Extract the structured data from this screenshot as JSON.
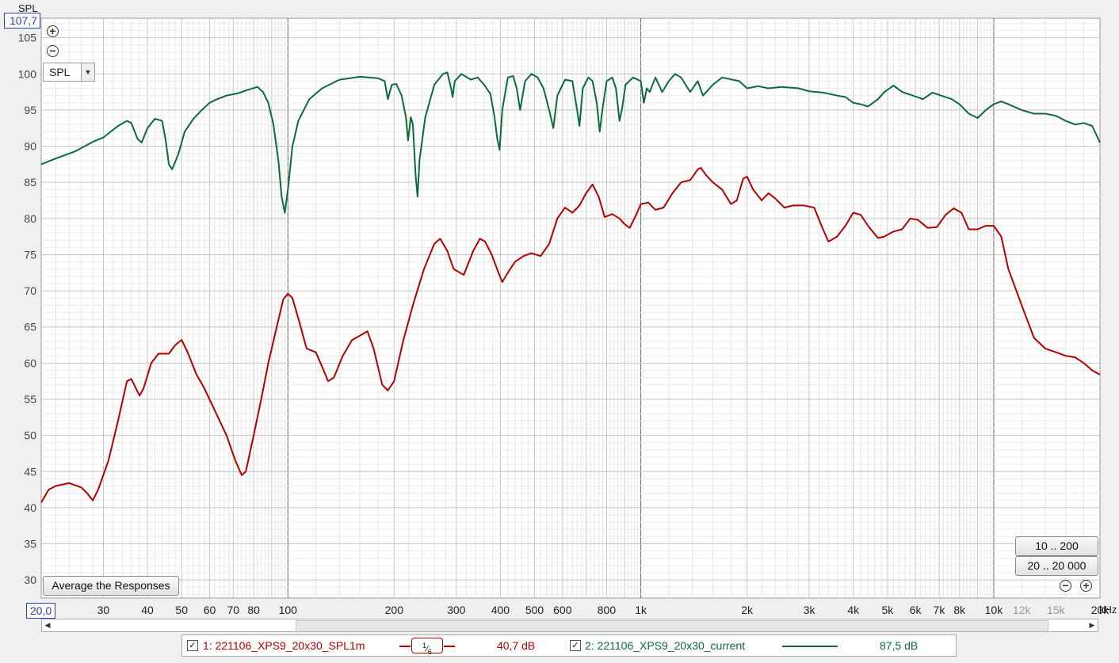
{
  "axes": {
    "y_unit": "SPL",
    "y_max_value": "107,7",
    "x_min_value": "20,0",
    "x_unit": "kHz",
    "y_ticks": [
      30,
      35,
      40,
      45,
      50,
      55,
      60,
      65,
      70,
      75,
      80,
      85,
      90,
      95,
      100,
      105
    ],
    "x_ticks": [
      {
        "f": 30,
        "label": "30"
      },
      {
        "f": 40,
        "label": "40"
      },
      {
        "f": 50,
        "label": "50"
      },
      {
        "f": 60,
        "label": "60"
      },
      {
        "f": 70,
        "label": "70"
      },
      {
        "f": 80,
        "label": "80"
      },
      {
        "f": 100,
        "label": "100"
      },
      {
        "f": 200,
        "label": "200"
      },
      {
        "f": 300,
        "label": "300"
      },
      {
        "f": 400,
        "label": "400"
      },
      {
        "f": 500,
        "label": "500"
      },
      {
        "f": 600,
        "label": "600"
      },
      {
        "f": 800,
        "label": "800"
      },
      {
        "f": 1000,
        "label": "1k"
      },
      {
        "f": 2000,
        "label": "2k"
      },
      {
        "f": 3000,
        "label": "3k"
      },
      {
        "f": 4000,
        "label": "4k"
      },
      {
        "f": 5000,
        "label": "5k"
      },
      {
        "f": 6000,
        "label": "6k"
      },
      {
        "f": 7000,
        "label": "7k"
      },
      {
        "f": 8000,
        "label": "8k"
      },
      {
        "f": 10000,
        "label": "10k"
      },
      {
        "f": 12000,
        "label": "12k",
        "dim": true
      },
      {
        "f": 15000,
        "label": "15k",
        "dim": true
      },
      {
        "f": 20000,
        "label": "20k"
      }
    ]
  },
  "controls": {
    "spl_select": "SPL",
    "average_button": "Average the Responses",
    "range_button_1": "10 .. 200",
    "range_button_2": "20 .. 20 000"
  },
  "legend": {
    "item1_label": "1: 221106_XPS9_20x30_SPL1m",
    "item1_value": "40,7 dB",
    "smoothing_num": "1",
    "smoothing_den": "6",
    "item2_label": "2: 221106_XPS9_20x30_current",
    "item2_value": "87,5 dB"
  },
  "colors": {
    "series1": "#b30000",
    "series2": "#0b6b3a",
    "grid": "#d6d6d6",
    "major_grid": "#666666"
  },
  "chart_data": {
    "type": "line",
    "x_scale": "log",
    "xlim": [
      20,
      20000
    ],
    "ylim": [
      27.5,
      107.7
    ],
    "grid": true,
    "series": [
      {
        "name": "1: 221106_XPS9_20x30_SPL1m",
        "color": "#b30000",
        "points": [
          [
            20,
            40.7
          ],
          [
            21,
            42.5
          ],
          [
            22,
            43.0
          ],
          [
            24,
            43.4
          ],
          [
            26,
            42.8
          ],
          [
            27,
            42.0
          ],
          [
            28,
            41.0
          ],
          [
            29,
            42.5
          ],
          [
            31,
            46.5
          ],
          [
            33,
            52
          ],
          [
            35,
            57.5
          ],
          [
            36,
            57.8
          ],
          [
            38,
            55.5
          ],
          [
            39,
            56.5
          ],
          [
            41,
            60
          ],
          [
            43,
            61.3
          ],
          [
            46,
            61.3
          ],
          [
            48,
            62.5
          ],
          [
            50,
            63.2
          ],
          [
            52,
            61.5
          ],
          [
            55,
            58.5
          ],
          [
            58,
            56.5
          ],
          [
            62,
            53.5
          ],
          [
            67,
            50
          ],
          [
            71,
            46.5
          ],
          [
            74,
            44.5
          ],
          [
            76,
            45
          ],
          [
            80,
            50
          ],
          [
            84,
            55
          ],
          [
            88,
            60
          ],
          [
            93,
            65
          ],
          [
            97,
            68.8
          ],
          [
            100,
            69.6
          ],
          [
            103,
            69
          ],
          [
            108,
            65.5
          ],
          [
            113,
            62
          ],
          [
            120,
            61.5
          ],
          [
            125,
            59.5
          ],
          [
            130,
            57.5
          ],
          [
            135,
            58
          ],
          [
            143,
            61
          ],
          [
            152,
            63.2
          ],
          [
            160,
            63.8
          ],
          [
            168,
            64.4
          ],
          [
            175,
            62
          ],
          [
            185,
            57
          ],
          [
            192,
            56.2
          ],
          [
            200,
            57.5
          ],
          [
            212,
            63
          ],
          [
            226,
            68
          ],
          [
            243,
            73
          ],
          [
            260,
            76.5
          ],
          [
            270,
            77.2
          ],
          [
            283,
            75.5
          ],
          [
            295,
            73
          ],
          [
            315,
            72.2
          ],
          [
            335,
            75.5
          ],
          [
            350,
            77.2
          ],
          [
            362,
            76.8
          ],
          [
            378,
            75
          ],
          [
            395,
            72.5
          ],
          [
            405,
            71.2
          ],
          [
            420,
            72.5
          ],
          [
            440,
            74
          ],
          [
            465,
            74.8
          ],
          [
            490,
            75.2
          ],
          [
            520,
            74.8
          ],
          [
            550,
            76.5
          ],
          [
            580,
            80
          ],
          [
            610,
            81.5
          ],
          [
            640,
            80.8
          ],
          [
            670,
            81.8
          ],
          [
            700,
            83.5
          ],
          [
            730,
            84.7
          ],
          [
            760,
            83
          ],
          [
            790,
            80.2
          ],
          [
            830,
            80.6
          ],
          [
            870,
            80
          ],
          [
            900,
            79.2
          ],
          [
            930,
            78.7
          ],
          [
            970,
            80.5
          ],
          [
            1000,
            82
          ],
          [
            1050,
            82.2
          ],
          [
            1100,
            81.2
          ],
          [
            1160,
            81.5
          ],
          [
            1230,
            83.5
          ],
          [
            1300,
            85
          ],
          [
            1380,
            85.3
          ],
          [
            1450,
            86.8
          ],
          [
            1480,
            87
          ],
          [
            1530,
            86
          ],
          [
            1600,
            85
          ],
          [
            1700,
            84
          ],
          [
            1800,
            82
          ],
          [
            1870,
            82.5
          ],
          [
            1950,
            85.5
          ],
          [
            2000,
            85.8
          ],
          [
            2080,
            84
          ],
          [
            2200,
            82.5
          ],
          [
            2300,
            83.5
          ],
          [
            2400,
            82.8
          ],
          [
            2550,
            81.5
          ],
          [
            2700,
            81.8
          ],
          [
            2900,
            81.8
          ],
          [
            3100,
            81.5
          ],
          [
            3250,
            79
          ],
          [
            3400,
            76.8
          ],
          [
            3600,
            77.5
          ],
          [
            3800,
            79
          ],
          [
            4000,
            80.8
          ],
          [
            4200,
            80.5
          ],
          [
            4400,
            79
          ],
          [
            4700,
            77.3
          ],
          [
            4900,
            77.5
          ],
          [
            5200,
            78.2
          ],
          [
            5500,
            78.5
          ],
          [
            5800,
            80
          ],
          [
            6100,
            79.8
          ],
          [
            6500,
            78.7
          ],
          [
            6900,
            78.8
          ],
          [
            7300,
            80.5
          ],
          [
            7700,
            81.4
          ],
          [
            8100,
            80.8
          ],
          [
            8500,
            78.5
          ],
          [
            9000,
            78.5
          ],
          [
            9500,
            79
          ],
          [
            10000,
            79
          ],
          [
            10500,
            77.5
          ],
          [
            11000,
            73
          ],
          [
            12000,
            68
          ],
          [
            13000,
            63.5
          ],
          [
            14000,
            62
          ],
          [
            15000,
            61.5
          ],
          [
            16000,
            61
          ],
          [
            17000,
            60.8
          ],
          [
            18000,
            60
          ],
          [
            19000,
            59
          ],
          [
            20000,
            58.4
          ]
        ]
      },
      {
        "name": "2: 221106_XPS9_20x30_current",
        "color": "#0b6b3a",
        "points": [
          [
            20,
            87.5
          ],
          [
            22,
            88.3
          ],
          [
            25,
            89.3
          ],
          [
            28,
            90.6
          ],
          [
            30,
            91.2
          ],
          [
            33,
            92.8
          ],
          [
            35,
            93.5
          ],
          [
            36,
            93.2
          ],
          [
            37.5,
            91
          ],
          [
            38.5,
            90.5
          ],
          [
            40,
            92.5
          ],
          [
            42,
            93.8
          ],
          [
            44,
            93.5
          ],
          [
            45,
            91
          ],
          [
            46,
            87.5
          ],
          [
            47,
            86.8
          ],
          [
            49,
            89
          ],
          [
            51,
            92
          ],
          [
            54,
            93.8
          ],
          [
            57,
            95
          ],
          [
            60,
            96
          ],
          [
            63,
            96.5
          ],
          [
            67,
            97
          ],
          [
            72,
            97.3
          ],
          [
            77,
            97.8
          ],
          [
            82,
            98.2
          ],
          [
            85,
            97.5
          ],
          [
            88,
            96
          ],
          [
            91,
            93
          ],
          [
            94,
            88
          ],
          [
            96,
            83
          ],
          [
            98,
            80.8
          ],
          [
            100,
            84
          ],
          [
            103,
            90
          ],
          [
            107,
            93.5
          ],
          [
            115,
            96.5
          ],
          [
            125,
            98
          ],
          [
            140,
            99.2
          ],
          [
            160,
            99.6
          ],
          [
            180,
            99.4
          ],
          [
            188,
            99
          ],
          [
            192,
            96.5
          ],
          [
            197,
            98.5
          ],
          [
            203,
            98.6
          ],
          [
            210,
            97
          ],
          [
            216,
            94
          ],
          [
            219,
            90.8
          ],
          [
            223,
            94
          ],
          [
            226,
            93
          ],
          [
            230,
            86
          ],
          [
            233,
            83
          ],
          [
            236,
            88
          ],
          [
            245,
            94
          ],
          [
            260,
            98.5
          ],
          [
            275,
            100
          ],
          [
            283,
            100.2
          ],
          [
            290,
            98
          ],
          [
            293,
            96.8
          ],
          [
            297,
            99
          ],
          [
            310,
            100
          ],
          [
            330,
            99.2
          ],
          [
            345,
            99.5
          ],
          [
            360,
            98.5
          ],
          [
            375,
            97.2
          ],
          [
            385,
            94
          ],
          [
            392,
            91
          ],
          [
            398,
            89.5
          ],
          [
            405,
            95
          ],
          [
            420,
            99.5
          ],
          [
            435,
            99.7
          ],
          [
            445,
            98
          ],
          [
            455,
            95
          ],
          [
            470,
            99
          ],
          [
            490,
            100
          ],
          [
            510,
            99.5
          ],
          [
            530,
            98
          ],
          [
            550,
            95
          ],
          [
            565,
            92.5
          ],
          [
            580,
            97
          ],
          [
            610,
            99.2
          ],
          [
            640,
            99
          ],
          [
            660,
            95
          ],
          [
            670,
            92.8
          ],
          [
            685,
            98
          ],
          [
            710,
            99.5
          ],
          [
            730,
            99
          ],
          [
            750,
            96
          ],
          [
            765,
            92
          ],
          [
            778,
            95
          ],
          [
            800,
            99
          ],
          [
            830,
            99.5
          ],
          [
            850,
            98
          ],
          [
            870,
            93.5
          ],
          [
            885,
            95.2
          ],
          [
            905,
            98.5
          ],
          [
            950,
            99.5
          ],
          [
            1000,
            99
          ],
          [
            1020,
            96
          ],
          [
            1040,
            98
          ],
          [
            1060,
            97.5
          ],
          [
            1100,
            99.5
          ],
          [
            1150,
            97.5
          ],
          [
            1200,
            99
          ],
          [
            1250,
            100
          ],
          [
            1300,
            99.5
          ],
          [
            1380,
            97.5
          ],
          [
            1450,
            99
          ],
          [
            1500,
            97
          ],
          [
            1600,
            98.5
          ],
          [
            1700,
            99.5
          ],
          [
            1900,
            99
          ],
          [
            2000,
            98
          ],
          [
            2150,
            98.3
          ],
          [
            2300,
            98
          ],
          [
            2500,
            98.2
          ],
          [
            2800,
            98
          ],
          [
            3000,
            97.6
          ],
          [
            3300,
            97.4
          ],
          [
            3600,
            97
          ],
          [
            3800,
            96.8
          ],
          [
            4000,
            96
          ],
          [
            4200,
            95.8
          ],
          [
            4400,
            95.5
          ],
          [
            4700,
            96.5
          ],
          [
            4900,
            97.5
          ],
          [
            5200,
            98.4
          ],
          [
            5500,
            97.5
          ],
          [
            5900,
            97
          ],
          [
            6300,
            96.5
          ],
          [
            6700,
            97.4
          ],
          [
            7100,
            97
          ],
          [
            7600,
            96.5
          ],
          [
            8000,
            95.8
          ],
          [
            8500,
            94.5
          ],
          [
            9000,
            93.9
          ],
          [
            9500,
            95
          ],
          [
            10000,
            95.8
          ],
          [
            10500,
            96.2
          ],
          [
            11000,
            95.8
          ],
          [
            12000,
            95
          ],
          [
            13000,
            94.5
          ],
          [
            14000,
            94.5
          ],
          [
            15000,
            94.2
          ],
          [
            16000,
            93.5
          ],
          [
            17000,
            93
          ],
          [
            18000,
            93.2
          ],
          [
            19000,
            92.8
          ],
          [
            20000,
            90.5
          ]
        ]
      }
    ]
  }
}
